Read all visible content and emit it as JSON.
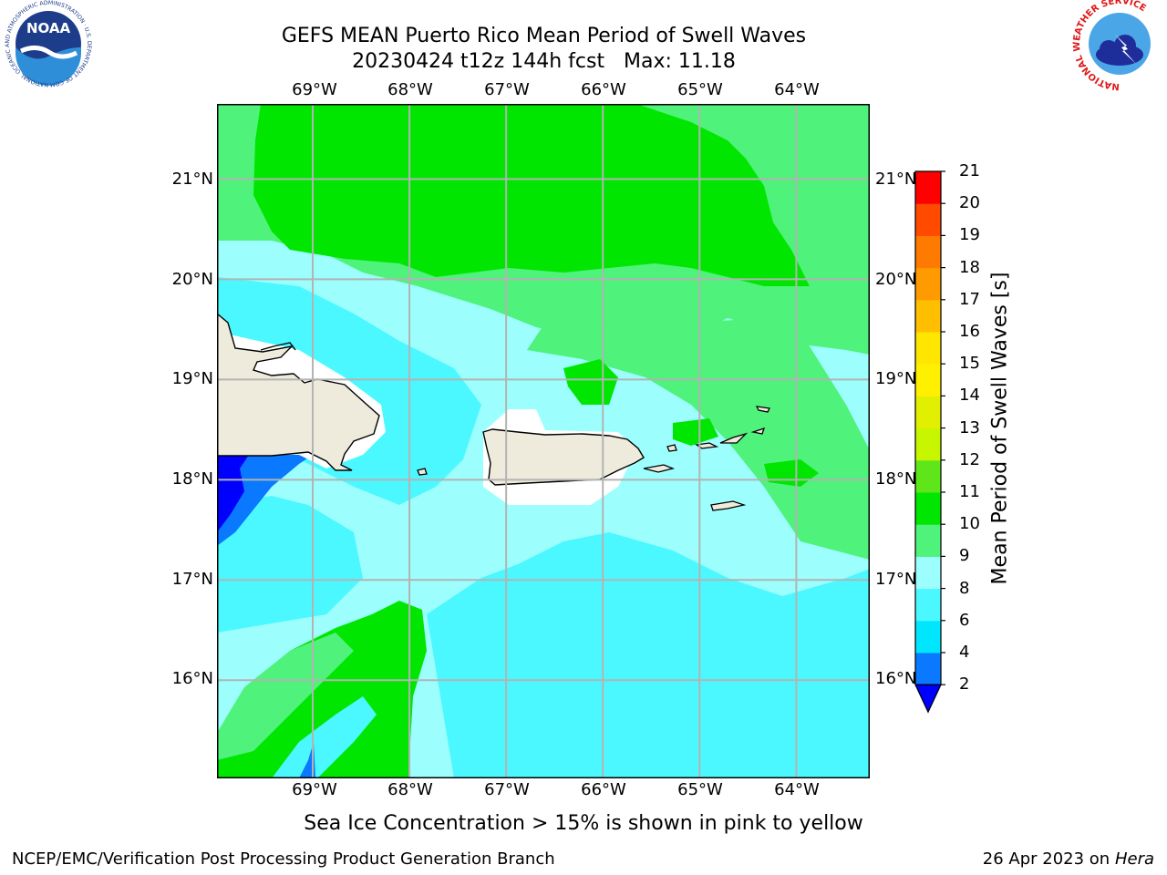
{
  "header": {
    "title_line1": "GEFS MEAN Puerto Rico Mean Period of Swell Waves",
    "title_line2": "20230424 t12z 144h fcst   Max: 11.18"
  },
  "logos": {
    "noaa_text": "NOAA",
    "noaa_ring_text": "NATIONAL OCEANIC AND ATMOSPHERIC ADMINISTRATION · U.S. DEPARTMENT OF COMMERCE",
    "nws_ring_text": "NATIONAL WEATHER SERVICE"
  },
  "map": {
    "lon_ticks": [
      "69°W",
      "68°W",
      "67°W",
      "66°W",
      "65°W",
      "64°W"
    ],
    "lat_ticks": [
      "21°N",
      "20°N",
      "19°N",
      "18°N",
      "17°N",
      "16°N"
    ],
    "gridlines": true,
    "colors": {
      "land": "#eeebdc",
      "masked_sea": "#ffffff",
      "grid": "#b3b3b3"
    }
  },
  "colorbar": {
    "label": "Mean Period of Swell Waves [s]",
    "ticks": [
      "2",
      "4",
      "6",
      "8",
      "9",
      "10",
      "11",
      "12",
      "13",
      "14",
      "15",
      "16",
      "17",
      "18",
      "19",
      "20",
      "21"
    ],
    "bins": [
      {
        "from": 2,
        "to": 4,
        "color": "#0a78ff"
      },
      {
        "from": 4,
        "to": 6,
        "color": "#00e6ff"
      },
      {
        "from": 6,
        "to": 8,
        "color": "#4cf8ff"
      },
      {
        "from": 8,
        "to": 9,
        "color": "#9cfffe"
      },
      {
        "from": 9,
        "to": 10,
        "color": "#4ff27a"
      },
      {
        "from": 10,
        "to": 11,
        "color": "#00e600"
      },
      {
        "from": 11,
        "to": 12,
        "color": "#5fe61a"
      },
      {
        "from": 12,
        "to": 13,
        "color": "#c8f500"
      },
      {
        "from": 13,
        "to": 14,
        "color": "#e1f000"
      },
      {
        "from": 14,
        "to": 15,
        "color": "#fff000"
      },
      {
        "from": 15,
        "to": 16,
        "color": "#ffe600"
      },
      {
        "from": 16,
        "to": 17,
        "color": "#ffbf00"
      },
      {
        "from": 17,
        "to": 18,
        "color": "#ff9a00"
      },
      {
        "from": 18,
        "to": 19,
        "color": "#ff7a00"
      },
      {
        "from": 19,
        "to": 20,
        "color": "#ff4a00"
      },
      {
        "from": 20,
        "to": 21,
        "color": "#ff0000"
      }
    ],
    "under_color": "#0000ff"
  },
  "footer": {
    "note": "Sea Ice Concentration > 15% is shown in pink to yellow",
    "left": "NCEP/EMC/Verification Post Processing Product Generation Branch",
    "right_prefix": "26 Apr 2023 on ",
    "right_host": "Hera"
  }
}
